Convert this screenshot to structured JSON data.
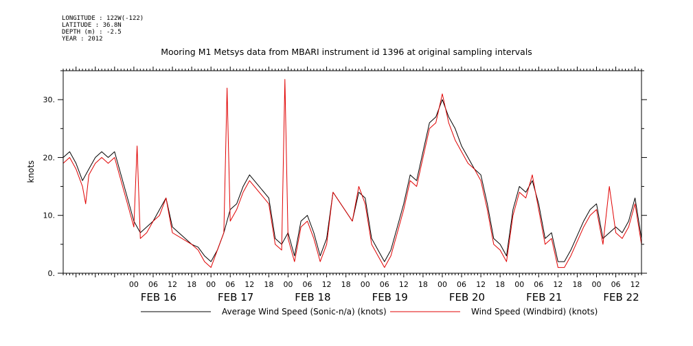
{
  "meta": {
    "longitude": "LONGITUDE : 122W(-122)",
    "latitude": "LATITUDE : 36.8N",
    "depth": "DEPTH (m) : -2.5",
    "year": "YEAR : 2012"
  },
  "colors": {
    "average": "#000000",
    "windbird": "#e00000"
  },
  "chart_data": {
    "type": "line",
    "title": "Mooring M1 Metsys data from MBARI instrument id 1396 at original sampling intervals",
    "ylabel": "knots",
    "xlim": [
      "2012-02-15 02:00",
      "2012-02-22 14:00"
    ],
    "ylim": [
      0,
      35
    ],
    "yticks": [
      0,
      10,
      20,
      30
    ],
    "ytick_labels": [
      "0.",
      "10.",
      "20.",
      "30."
    ],
    "hour_tick_labels": [
      "00",
      "06",
      "12",
      "18",
      "00",
      "06",
      "12",
      "18",
      "00",
      "06",
      "12",
      "18",
      "00",
      "06",
      "12",
      "18",
      "00",
      "06",
      "12",
      "18",
      "00",
      "06",
      "12",
      "18",
      "00",
      "06",
      "12"
    ],
    "date_labels": [
      {
        "label": "FEB 16",
        "at": "2012-02-16 00:00"
      },
      {
        "label": "FEB 17",
        "at": "2012-02-17 00:00"
      },
      {
        "label": "FEB 18",
        "at": "2012-02-18 00:00"
      },
      {
        "label": "FEB 19",
        "at": "2012-02-19 00:00"
      },
      {
        "label": "FEB 20",
        "at": "2012-02-20 00:00"
      },
      {
        "label": "FEB 21",
        "at": "2012-02-21 00:00"
      },
      {
        "label": "FEB 22",
        "at": "2012-02-22 00:00"
      }
    ],
    "series": [
      {
        "name": "Average Wind Speed (Sonic-n/a) (knots)",
        "color": "#000000",
        "points": [
          [
            "2012-02-15 02:00",
            20
          ],
          [
            "2012-02-15 04:00",
            21
          ],
          [
            "2012-02-15 06:00",
            19
          ],
          [
            "2012-02-15 08:00",
            16
          ],
          [
            "2012-02-15 10:00",
            18
          ],
          [
            "2012-02-15 12:00",
            20
          ],
          [
            "2012-02-15 14:00",
            21
          ],
          [
            "2012-02-15 16:00",
            20
          ],
          [
            "2012-02-15 18:00",
            21
          ],
          [
            "2012-02-15 20:00",
            17
          ],
          [
            "2012-02-15 22:00",
            13
          ],
          [
            "2012-02-16 00:00",
            9
          ],
          [
            "2012-02-16 02:00",
            7
          ],
          [
            "2012-02-16 04:00",
            8
          ],
          [
            "2012-02-16 06:00",
            9
          ],
          [
            "2012-02-16 08:00",
            11
          ],
          [
            "2012-02-16 10:00",
            13
          ],
          [
            "2012-02-16 12:00",
            8
          ],
          [
            "2012-02-16 18:00",
            5
          ],
          [
            "2012-02-16 20:00",
            4.5
          ],
          [
            "2012-02-16 22:00",
            3
          ],
          [
            "2012-02-17 00:00",
            2
          ],
          [
            "2012-02-17 02:00",
            4
          ],
          [
            "2012-02-17 04:00",
            7
          ],
          [
            "2012-02-17 06:00",
            11
          ],
          [
            "2012-02-17 08:00",
            12
          ],
          [
            "2012-02-17 10:00",
            15
          ],
          [
            "2012-02-17 12:00",
            17
          ],
          [
            "2012-02-17 18:00",
            13
          ],
          [
            "2012-02-17 20:00",
            6
          ],
          [
            "2012-02-17 22:00",
            5
          ],
          [
            "2012-02-18 00:00",
            7
          ],
          [
            "2012-02-18 02:00",
            3
          ],
          [
            "2012-02-18 04:00",
            9
          ],
          [
            "2012-02-18 06:00",
            10
          ],
          [
            "2012-02-18 08:00",
            7
          ],
          [
            "2012-02-18 10:00",
            3
          ],
          [
            "2012-02-18 12:00",
            6
          ],
          [
            "2012-02-18 14:00",
            14
          ],
          [
            "2012-02-18 20:00",
            9
          ],
          [
            "2012-02-18 22:00",
            14
          ],
          [
            "2012-02-19 00:00",
            13
          ],
          [
            "2012-02-19 02:00",
            6
          ],
          [
            "2012-02-19 04:00",
            4
          ],
          [
            "2012-02-19 06:00",
            2
          ],
          [
            "2012-02-19 08:00",
            4
          ],
          [
            "2012-02-19 10:00",
            8
          ],
          [
            "2012-02-19 12:00",
            12
          ],
          [
            "2012-02-19 14:00",
            17
          ],
          [
            "2012-02-19 16:00",
            16
          ],
          [
            "2012-02-19 18:00",
            21
          ],
          [
            "2012-02-19 20:00",
            26
          ],
          [
            "2012-02-19 22:00",
            27
          ],
          [
            "2012-02-20 00:00",
            30
          ],
          [
            "2012-02-20 02:00",
            27
          ],
          [
            "2012-02-20 04:00",
            25
          ],
          [
            "2012-02-20 06:00",
            22
          ],
          [
            "2012-02-20 08:00",
            20
          ],
          [
            "2012-02-20 10:00",
            18
          ],
          [
            "2012-02-20 12:00",
            17
          ],
          [
            "2012-02-20 14:00",
            12
          ],
          [
            "2012-02-20 16:00",
            6
          ],
          [
            "2012-02-20 18:00",
            5
          ],
          [
            "2012-02-20 20:00",
            3
          ],
          [
            "2012-02-20 22:00",
            11
          ],
          [
            "2012-02-21 00:00",
            15
          ],
          [
            "2012-02-21 02:00",
            14
          ],
          [
            "2012-02-21 04:00",
            16
          ],
          [
            "2012-02-21 06:00",
            12
          ],
          [
            "2012-02-21 08:00",
            6
          ],
          [
            "2012-02-21 10:00",
            7
          ],
          [
            "2012-02-21 12:00",
            2
          ],
          [
            "2012-02-21 14:00",
            2
          ],
          [
            "2012-02-21 16:00",
            4
          ],
          [
            "2012-02-21 20:00",
            9
          ],
          [
            "2012-02-21 22:00",
            11
          ],
          [
            "2012-02-22 00:00",
            12
          ],
          [
            "2012-02-22 02:00",
            6
          ],
          [
            "2012-02-22 06:00",
            8
          ],
          [
            "2012-02-22 08:00",
            7
          ],
          [
            "2012-02-22 10:00",
            9
          ],
          [
            "2012-02-22 12:00",
            13
          ],
          [
            "2012-02-22 14:00",
            6
          ]
        ]
      },
      {
        "name": "Wind Speed (Windbird) (knots)",
        "color": "#e00000",
        "points": [
          [
            "2012-02-15 02:00",
            19
          ],
          [
            "2012-02-15 04:00",
            20
          ],
          [
            "2012-02-15 06:00",
            18
          ],
          [
            "2012-02-15 08:00",
            15
          ],
          [
            "2012-02-15 09:00",
            12
          ],
          [
            "2012-02-15 10:00",
            17
          ],
          [
            "2012-02-15 12:00",
            19
          ],
          [
            "2012-02-15 14:00",
            20
          ],
          [
            "2012-02-15 16:00",
            19
          ],
          [
            "2012-02-15 18:00",
            20
          ],
          [
            "2012-02-15 20:00",
            16
          ],
          [
            "2012-02-15 22:00",
            12
          ],
          [
            "2012-02-16 00:00",
            8
          ],
          [
            "2012-02-16 01:00",
            22
          ],
          [
            "2012-02-16 02:00",
            6
          ],
          [
            "2012-02-16 04:00",
            7
          ],
          [
            "2012-02-16 06:00",
            9
          ],
          [
            "2012-02-16 08:00",
            10
          ],
          [
            "2012-02-16 10:00",
            13
          ],
          [
            "2012-02-16 12:00",
            7
          ],
          [
            "2012-02-16 18:00",
            5
          ],
          [
            "2012-02-16 20:00",
            4
          ],
          [
            "2012-02-16 22:00",
            2
          ],
          [
            "2012-02-17 00:00",
            1
          ],
          [
            "2012-02-17 02:00",
            4
          ],
          [
            "2012-02-17 04:00",
            7
          ],
          [
            "2012-02-17 05:00",
            32
          ],
          [
            "2012-02-17 06:00",
            9
          ],
          [
            "2012-02-17 08:00",
            11
          ],
          [
            "2012-02-17 10:00",
            14
          ],
          [
            "2012-02-17 12:00",
            16
          ],
          [
            "2012-02-17 18:00",
            12
          ],
          [
            "2012-02-17 20:00",
            5
          ],
          [
            "2012-02-17 22:00",
            4
          ],
          [
            "2012-02-17 23:00",
            33.5
          ],
          [
            "2012-02-18 00:00",
            6
          ],
          [
            "2012-02-18 02:00",
            2
          ],
          [
            "2012-02-18 04:00",
            8
          ],
          [
            "2012-02-18 06:00",
            9
          ],
          [
            "2012-02-18 08:00",
            6
          ],
          [
            "2012-02-18 10:00",
            2
          ],
          [
            "2012-02-18 12:00",
            5
          ],
          [
            "2012-02-18 14:00",
            14
          ],
          [
            "2012-02-18 20:00",
            9
          ],
          [
            "2012-02-18 22:00",
            15
          ],
          [
            "2012-02-19 00:00",
            12
          ],
          [
            "2012-02-19 02:00",
            5
          ],
          [
            "2012-02-19 04:00",
            3
          ],
          [
            "2012-02-19 06:00",
            1
          ],
          [
            "2012-02-19 08:00",
            3
          ],
          [
            "2012-02-19 10:00",
            7
          ],
          [
            "2012-02-19 12:00",
            11
          ],
          [
            "2012-02-19 14:00",
            16
          ],
          [
            "2012-02-19 16:00",
            15
          ],
          [
            "2012-02-19 18:00",
            20
          ],
          [
            "2012-02-19 20:00",
            25
          ],
          [
            "2012-02-19 22:00",
            26
          ],
          [
            "2012-02-20 00:00",
            31
          ],
          [
            "2012-02-20 02:00",
            26
          ],
          [
            "2012-02-20 04:00",
            23
          ],
          [
            "2012-02-20 06:00",
            21
          ],
          [
            "2012-02-20 08:00",
            19
          ],
          [
            "2012-02-20 10:00",
            18
          ],
          [
            "2012-02-20 12:00",
            16
          ],
          [
            "2012-02-20 14:00",
            11
          ],
          [
            "2012-02-20 16:00",
            5
          ],
          [
            "2012-02-20 18:00",
            4
          ],
          [
            "2012-02-20 20:00",
            2
          ],
          [
            "2012-02-20 22:00",
            10
          ],
          [
            "2012-02-21 00:00",
            14
          ],
          [
            "2012-02-21 02:00",
            13
          ],
          [
            "2012-02-21 04:00",
            17
          ],
          [
            "2012-02-21 06:00",
            11
          ],
          [
            "2012-02-21 08:00",
            5
          ],
          [
            "2012-02-21 10:00",
            6
          ],
          [
            "2012-02-21 12:00",
            1
          ],
          [
            "2012-02-21 14:00",
            1
          ],
          [
            "2012-02-21 16:00",
            3
          ],
          [
            "2012-02-21 20:00",
            8
          ],
          [
            "2012-02-21 22:00",
            10
          ],
          [
            "2012-02-22 00:00",
            11
          ],
          [
            "2012-02-22 02:00",
            5
          ],
          [
            "2012-02-22 04:00",
            15
          ],
          [
            "2012-02-22 06:00",
            7
          ],
          [
            "2012-02-22 08:00",
            6
          ],
          [
            "2012-02-22 10:00",
            8
          ],
          [
            "2012-02-22 12:00",
            12
          ],
          [
            "2012-02-22 14:00",
            5
          ]
        ]
      }
    ]
  }
}
